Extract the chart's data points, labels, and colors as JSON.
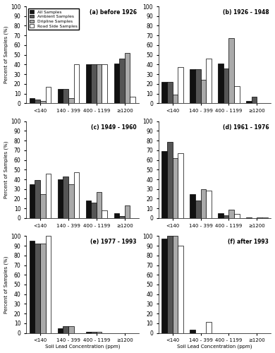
{
  "subplots": [
    {
      "title": "(a) before 1926",
      "data": {
        "<140": [
          5,
          4,
          2,
          17
        ],
        "140 - 399": [
          15,
          15,
          5,
          40
        ],
        "400 - 1199": [
          40,
          40,
          40,
          40
        ],
        "≥1200": [
          41,
          46,
          52,
          7
        ]
      }
    },
    {
      "title": "(b) 1926 - 1948",
      "data": {
        "<140": [
          22,
          22,
          9,
          37
        ],
        "140 - 399": [
          35,
          35,
          24,
          46
        ],
        "400 - 1199": [
          41,
          36,
          67,
          18
        ],
        "≥1200": [
          2,
          7,
          0,
          0
        ]
      }
    },
    {
      "title": "(c) 1949 - 1960",
      "data": {
        "<140": [
          35,
          39,
          25,
          46
        ],
        "140 - 399": [
          40,
          43,
          35,
          47
        ],
        "400 - 1199": [
          18,
          16,
          27,
          8
        ],
        "≥1200": [
          5,
          2,
          13,
          0
        ]
      }
    },
    {
      "title": "(d) 1961 - 1976",
      "data": {
        "<140": [
          69,
          79,
          62,
          67
        ],
        "140 - 399": [
          25,
          18,
          30,
          28
        ],
        "400 - 1199": [
          5,
          3,
          9,
          4
        ],
        "≥1200": [
          1,
          0,
          1,
          1
        ]
      }
    },
    {
      "title": "(e) 1977 - 1993",
      "data": {
        "<140": [
          95,
          92,
          92,
          100
        ],
        "140 - 399": [
          5,
          7,
          7,
          0
        ],
        "400 - 1199": [
          1,
          1,
          1,
          0
        ],
        "≥1200": [
          0,
          0,
          0,
          0
        ]
      }
    },
    {
      "title": "(f) after 1993",
      "data": {
        "<140": [
          97,
          100,
          100,
          90
        ],
        "140 - 399": [
          3,
          0,
          0,
          11
        ],
        "400 - 1199": [
          0,
          0,
          0,
          0
        ],
        "≥1200": [
          0,
          0,
          0,
          0
        ]
      }
    }
  ],
  "categories": [
    "<140",
    "140 - 399",
    "400 - 1199",
    "≥1200"
  ],
  "bar_colors": [
    "#111111",
    "#555555",
    "#aaaaaa",
    "#ffffff"
  ],
  "bar_edgecolors": [
    "#000000",
    "#000000",
    "#000000",
    "#000000"
  ],
  "legend_labels": [
    "All Samples",
    "Ambient Samples",
    "Dripline Samples",
    "Road Side Samples"
  ],
  "ylabel": "Percent of Samples (%)",
  "xlabel": "Soil Lead Concentration (ppm)",
  "ylim": [
    0,
    100
  ],
  "yticks": [
    0,
    10,
    20,
    30,
    40,
    50,
    60,
    70,
    80,
    90,
    100
  ]
}
